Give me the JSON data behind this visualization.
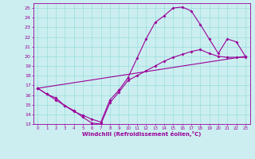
{
  "xlabel": "Windchill (Refroidissement éolien,°C)",
  "bg_color": "#cceef0",
  "grid_color": "#99dddd",
  "line_color": "#990099",
  "xlim": [
    -0.5,
    23.5
  ],
  "ylim": [
    13,
    25.5
  ],
  "xticks": [
    0,
    1,
    2,
    3,
    4,
    5,
    6,
    7,
    8,
    9,
    10,
    11,
    12,
    13,
    14,
    15,
    16,
    17,
    18,
    19,
    20,
    21,
    22,
    23
  ],
  "yticks": [
    13,
    14,
    15,
    16,
    17,
    18,
    19,
    20,
    21,
    22,
    23,
    24,
    25
  ],
  "line1_x": [
    0,
    1,
    2,
    3,
    4,
    5,
    6,
    7,
    8,
    9,
    10,
    11,
    12,
    13,
    14,
    15,
    16,
    17,
    18,
    19,
    20,
    21,
    22,
    23
  ],
  "line1_y": [
    16.7,
    16.1,
    15.7,
    14.9,
    14.4,
    13.7,
    13.1,
    13.0,
    15.2,
    16.3,
    17.5,
    18.0,
    18.5,
    19.0,
    19.5,
    19.9,
    20.2,
    20.5,
    20.7,
    20.3,
    20.0,
    19.9,
    19.9,
    19.9
  ],
  "line2_x": [
    0,
    1,
    2,
    3,
    4,
    5,
    6,
    7,
    8,
    9,
    10,
    11,
    12,
    13,
    14,
    15,
    16,
    17,
    18,
    19,
    20,
    21,
    22,
    23
  ],
  "line2_y": [
    16.7,
    16.1,
    15.5,
    14.9,
    14.3,
    13.9,
    13.5,
    13.2,
    15.5,
    16.5,
    17.8,
    19.8,
    21.8,
    23.5,
    24.2,
    25.0,
    25.1,
    24.7,
    23.3,
    21.8,
    20.3,
    21.8,
    21.5,
    20.0
  ],
  "line3_x": [
    0,
    23
  ],
  "line3_y": [
    16.7,
    20.0
  ],
  "marker": "D",
  "marker_size": 2.0,
  "linewidth": 0.8
}
